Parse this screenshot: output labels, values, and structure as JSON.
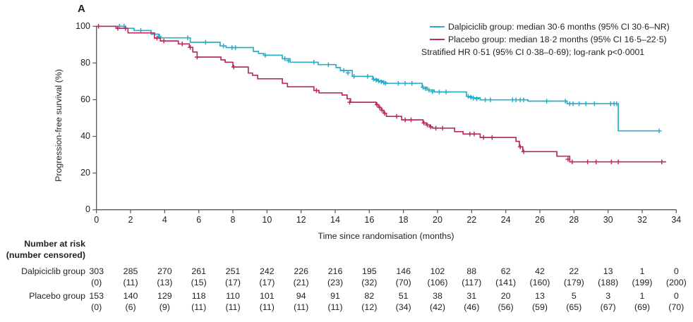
{
  "panel_label": "A",
  "colors": {
    "dalpiciclib": "#2BACC9",
    "placebo": "#BC2B5D",
    "axis": "#55565A",
    "text": "#231F20"
  },
  "legend": {
    "items": [
      {
        "name": "Dalpiciclib group",
        "label": "Dalpiciclib group: median 30·6 months (95% CI 30·6–NR)"
      },
      {
        "name": "Placebo group",
        "label": "Placebo group: median 18·2 months (95% CI 16·5–22·5)"
      }
    ],
    "note": "Stratified HR 0·51 (95% CI 0·38–0·69); log-rank p<0·0001"
  },
  "chart_data": {
    "type": "line",
    "subtype": "kaplan-meier-step",
    "title": "",
    "xlabel": "Time since randomisation (months)",
    "ylabel": "Progression-free survival (%)",
    "xlim": [
      0,
      34
    ],
    "ylim": [
      0,
      100
    ],
    "xticks": [
      0,
      2,
      4,
      6,
      8,
      10,
      12,
      14,
      16,
      18,
      20,
      22,
      24,
      26,
      28,
      30,
      32,
      34
    ],
    "yticks": [
      0,
      20,
      40,
      60,
      80,
      100
    ],
    "grid": false,
    "legend_position": "top-right",
    "series": [
      {
        "name": "Dalpiciclib group",
        "color": "#2BACC9",
        "median_months": "30·6",
        "median_ci": "30·6–NR",
        "steps": [
          [
            0,
            100
          ],
          [
            1.7,
            98.9
          ],
          [
            2.2,
            97.7
          ],
          [
            3.2,
            95.7
          ],
          [
            3.65,
            93.7
          ],
          [
            5.5,
            91.3
          ],
          [
            7.25,
            89.3
          ],
          [
            7.6,
            88.4
          ],
          [
            9.2,
            86.3
          ],
          [
            9.5,
            85.2
          ],
          [
            9.8,
            84.2
          ],
          [
            10.9,
            82.3
          ],
          [
            11.35,
            80.4
          ],
          [
            13.0,
            79.1
          ],
          [
            14.05,
            77.5
          ],
          [
            14.3,
            75.9
          ],
          [
            15.0,
            72.7
          ],
          [
            16.2,
            71.2
          ],
          [
            16.5,
            70.2
          ],
          [
            16.8,
            69.3
          ],
          [
            17.0,
            68.9
          ],
          [
            19.1,
            66.8
          ],
          [
            19.4,
            65.3
          ],
          [
            19.8,
            64.2
          ],
          [
            21.7,
            61.8
          ],
          [
            22.0,
            61.0
          ],
          [
            22.5,
            59.9
          ],
          [
            25.3,
            59.2
          ],
          [
            27.6,
            57.8
          ],
          [
            30.6,
            43.0
          ],
          [
            33.05,
            43.0
          ]
        ],
        "censor_marks": [
          [
            1.35,
            100
          ],
          [
            1.62,
            100
          ],
          [
            2.6,
            97.7
          ],
          [
            3.7,
            94.5
          ],
          [
            5.35,
            93.7
          ],
          [
            6.4,
            91.3
          ],
          [
            7.45,
            89.3
          ],
          [
            7.95,
            88.4
          ],
          [
            8.15,
            88.4
          ],
          [
            9.9,
            84.2
          ],
          [
            11.05,
            82.3
          ],
          [
            11.25,
            81.3
          ],
          [
            12.75,
            80.4
          ],
          [
            13.6,
            79.1
          ],
          [
            14.5,
            75.9
          ],
          [
            14.75,
            74.6
          ],
          [
            15.1,
            72.7
          ],
          [
            15.9,
            72.7
          ],
          [
            16.25,
            71.2
          ],
          [
            16.4,
            70.7
          ],
          [
            16.55,
            70.2
          ],
          [
            16.7,
            69.8
          ],
          [
            16.85,
            69.3
          ],
          [
            16.95,
            69.0
          ],
          [
            17.7,
            68.9
          ],
          [
            18.1,
            68.9
          ],
          [
            18.5,
            68.9
          ],
          [
            19.15,
            66.8
          ],
          [
            19.3,
            66.0
          ],
          [
            19.5,
            65.2
          ],
          [
            19.7,
            64.4
          ],
          [
            20.1,
            64.2
          ],
          [
            20.5,
            64.2
          ],
          [
            21.8,
            61.8
          ],
          [
            21.95,
            61.3
          ],
          [
            22.1,
            60.9
          ],
          [
            22.3,
            60.5
          ],
          [
            22.8,
            59.9
          ],
          [
            23.1,
            59.9
          ],
          [
            24.4,
            59.9
          ],
          [
            24.6,
            59.9
          ],
          [
            24.85,
            59.9
          ],
          [
            25.05,
            59.9
          ],
          [
            26.4,
            59.2
          ],
          [
            27.5,
            59.2
          ],
          [
            27.75,
            57.8
          ],
          [
            27.95,
            57.8
          ],
          [
            28.3,
            57.8
          ],
          [
            28.7,
            57.8
          ],
          [
            29.2,
            57.8
          ],
          [
            30.15,
            57.8
          ],
          [
            30.35,
            57.8
          ],
          [
            30.5,
            57.8
          ],
          [
            33.0,
            43.0
          ]
        ]
      },
      {
        "name": "Placebo group",
        "color": "#BC2B5D",
        "median_months": "18·2",
        "median_ci": "16·5–22·5",
        "steps": [
          [
            0,
            100
          ],
          [
            1.15,
            98.9
          ],
          [
            1.85,
            96.4
          ],
          [
            3.4,
            93.6
          ],
          [
            3.75,
            92.0
          ],
          [
            4.8,
            90.4
          ],
          [
            5.45,
            88.5
          ],
          [
            5.65,
            86.0
          ],
          [
            5.9,
            83.2
          ],
          [
            7.3,
            81.7
          ],
          [
            7.55,
            80.4
          ],
          [
            8.0,
            77.8
          ],
          [
            8.9,
            74.5
          ],
          [
            9.15,
            73.3
          ],
          [
            9.45,
            71.4
          ],
          [
            10.9,
            68.9
          ],
          [
            11.2,
            67.0
          ],
          [
            12.75,
            65.0
          ],
          [
            13.05,
            63.7
          ],
          [
            14.4,
            62.5
          ],
          [
            14.7,
            60.5
          ],
          [
            14.9,
            58.6
          ],
          [
            16.4,
            57.3
          ],
          [
            16.55,
            55.8
          ],
          [
            16.7,
            54.2
          ],
          [
            16.85,
            52.6
          ],
          [
            17.0,
            50.9
          ],
          [
            17.9,
            49.0
          ],
          [
            19.15,
            47.3
          ],
          [
            19.35,
            46.2
          ],
          [
            19.55,
            45.2
          ],
          [
            19.7,
            44.5
          ],
          [
            21.0,
            42.6
          ],
          [
            21.5,
            41.3
          ],
          [
            22.5,
            39.4
          ],
          [
            24.6,
            37.3
          ],
          [
            24.8,
            34.3
          ],
          [
            25.0,
            31.7
          ],
          [
            27.0,
            29.2
          ],
          [
            27.75,
            26.1
          ],
          [
            33.4,
            26.1
          ]
        ],
        "censor_marks": [
          [
            0.12,
            100
          ],
          [
            1.25,
            98.9
          ],
          [
            1.7,
            98.9
          ],
          [
            3.55,
            93.6
          ],
          [
            3.95,
            92.0
          ],
          [
            5.03,
            90.4
          ],
          [
            5.5,
            88.5
          ],
          [
            5.9,
            83.2
          ],
          [
            8.05,
            77.8
          ],
          [
            12.9,
            65.0
          ],
          [
            14.85,
            58.6
          ],
          [
            16.45,
            57.3
          ],
          [
            16.6,
            55.8
          ],
          [
            16.75,
            54.2
          ],
          [
            16.9,
            52.6
          ],
          [
            17.6,
            50.9
          ],
          [
            18.1,
            49.0
          ],
          [
            18.45,
            49.0
          ],
          [
            19.2,
            47.3
          ],
          [
            19.4,
            46.2
          ],
          [
            19.6,
            45.2
          ],
          [
            19.9,
            44.5
          ],
          [
            20.3,
            44.5
          ],
          [
            21.9,
            41.3
          ],
          [
            22.15,
            41.3
          ],
          [
            22.7,
            39.4
          ],
          [
            23.2,
            39.4
          ],
          [
            24.85,
            34.3
          ],
          [
            25.05,
            31.7
          ],
          [
            27.65,
            27.5
          ],
          [
            27.9,
            26.1
          ],
          [
            28.8,
            26.1
          ],
          [
            29.3,
            26.1
          ],
          [
            30.2,
            26.1
          ],
          [
            30.6,
            26.1
          ],
          [
            33.15,
            26.1
          ]
        ]
      }
    ],
    "annotations": [
      "Stratified HR 0·51 (95% CI 0·38–0·69); log-rank p<0·0001"
    ]
  },
  "risk_table": {
    "header_line1": "Number at risk",
    "header_line2": "(number censored)",
    "time_points": [
      0,
      2,
      4,
      6,
      8,
      10,
      12,
      14,
      16,
      18,
      20,
      22,
      24,
      26,
      28,
      30,
      32,
      34
    ],
    "rows": [
      {
        "label": "Dalpiciclib group",
        "at_risk": [
          303,
          285,
          270,
          261,
          251,
          242,
          226,
          216,
          195,
          146,
          102,
          88,
          62,
          42,
          22,
          13,
          1,
          0
        ],
        "censored": [
          "(0)",
          "(11)",
          "(13)",
          "(15)",
          "(17)",
          "(17)",
          "(21)",
          "(23)",
          "(32)",
          "(70)",
          "(106)",
          "(117)",
          "(141)",
          "(160)",
          "(179)",
          "(188)",
          "(199)",
          "(200)"
        ]
      },
      {
        "label": "Placebo group",
        "at_risk": [
          153,
          140,
          129,
          118,
          110,
          101,
          94,
          91,
          82,
          51,
          38,
          31,
          20,
          13,
          5,
          3,
          1,
          0
        ],
        "censored": [
          "(0)",
          "(6)",
          "(9)",
          "(11)",
          "(11)",
          "(11)",
          "(11)",
          "(11)",
          "(12)",
          "(34)",
          "(42)",
          "(46)",
          "(56)",
          "(59)",
          "(65)",
          "(67)",
          "(69)",
          "(70)"
        ]
      }
    ]
  }
}
